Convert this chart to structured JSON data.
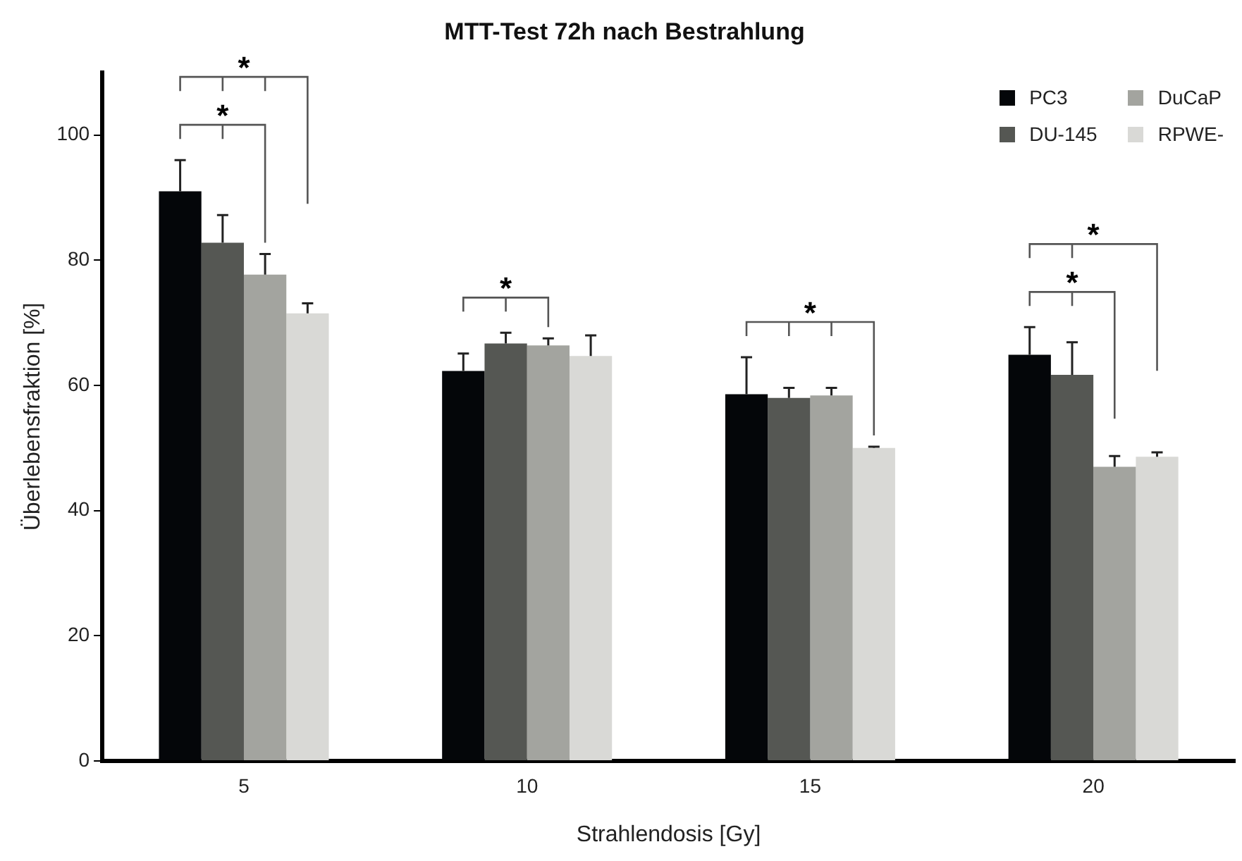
{
  "chart_data": {
    "type": "bar",
    "title": "MTT-Test 72h nach Bestrahlung",
    "xlabel": "Strahlendosis [Gy]",
    "ylabel": "Überlebensfraktion [%]",
    "categories": [
      "5",
      "10",
      "15",
      "20"
    ],
    "series": [
      {
        "name": "PC3",
        "color": "#040609",
        "values": [
          91,
          62.3,
          58.6,
          64.9
        ],
        "errors": [
          5,
          2.8,
          5.9,
          4.4
        ]
      },
      {
        "name": "DU-145",
        "color": "#555753",
        "values": [
          82.8,
          66.7,
          58,
          61.7
        ],
        "errors": [
          4.4,
          1.7,
          1.6,
          5.2
        ]
      },
      {
        "name": "DuCaP",
        "color": "#a3a49f",
        "values": [
          77.7,
          66.4,
          58.4,
          47
        ],
        "errors": [
          3.3,
          1.1,
          1.2,
          1.7
        ]
      },
      {
        "name": "RPWE-",
        "color": "#d9d9d6",
        "values": [
          71.5,
          64.7,
          50,
          48.6
        ],
        "errors": [
          1.6,
          3.3,
          0.2,
          0.7
        ]
      }
    ],
    "ylim": [
      0,
      110
    ],
    "yticks": [
      0,
      20,
      40,
      60,
      80,
      100
    ],
    "grid": false,
    "legend": "top right",
    "annotations": [
      "*",
      "*",
      "*",
      "*",
      "*",
      "*"
    ]
  }
}
